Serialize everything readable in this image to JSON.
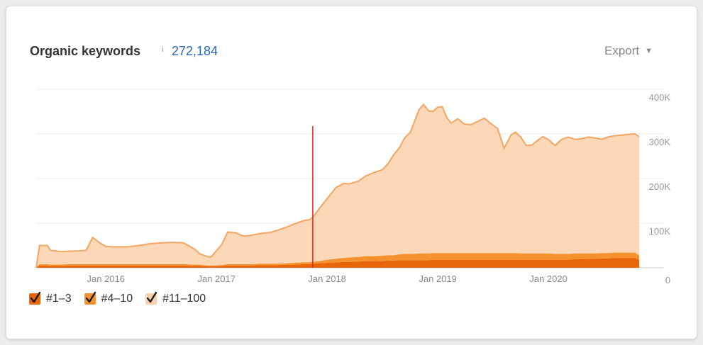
{
  "header": {
    "title": "Organic keywords",
    "info_glyph": "i",
    "total": "272,184",
    "export_label": "Export",
    "export_caret": "▼"
  },
  "colors": {
    "range_1_3": "#e8660a",
    "range_4_10": "#f6922e",
    "range_11_100": "#fbd1ad",
    "line_11_100": "#f5a562",
    "marker": "#e2231a",
    "total_text": "#2a6ab5"
  },
  "legend": [
    {
      "label": "#1–3",
      "color_key": "range_1_3",
      "checked": true
    },
    {
      "label": "#4–10",
      "color_key": "range_4_10",
      "checked": true
    },
    {
      "label": "#11–100",
      "color_key": "range_11_100",
      "checked": true
    }
  ],
  "chart_data": {
    "type": "area",
    "stacked": true,
    "x_unit": "year",
    "x_tick_labels": [
      "Jan 2016",
      "Jan 2017",
      "Jan 2018",
      "Jan 2019",
      "Jan 2020"
    ],
    "x_tick_values": [
      2016.0,
      2017.0,
      2018.0,
      2019.0,
      2020.0
    ],
    "xlim": [
      2015.37,
      2020.82
    ],
    "y_tick_labels": [
      "0",
      "100K",
      "200K",
      "300K",
      "400K"
    ],
    "y_tick_values": [
      0,
      100000,
      200000,
      300000,
      400000
    ],
    "ylim": [
      0,
      400000
    ],
    "grid": true,
    "legend_position": "bottom-left",
    "marker_line_x": 2017.87,
    "x": [
      2015.37,
      2015.4,
      2015.47,
      2015.5,
      2015.6,
      2015.65,
      2015.75,
      2015.82,
      2015.85,
      2015.88,
      2015.95,
      2016.0,
      2016.05,
      2016.1,
      2016.2,
      2016.3,
      2016.4,
      2016.5,
      2016.6,
      2016.7,
      2016.8,
      2016.85,
      2016.92,
      2016.95,
      2017.05,
      2017.1,
      2017.18,
      2017.22,
      2017.26,
      2017.32,
      2017.4,
      2017.48,
      2017.55,
      2017.62,
      2017.7,
      2017.78,
      2017.84,
      2017.87,
      2017.92,
      2018.0,
      2018.08,
      2018.15,
      2018.2,
      2018.28,
      2018.35,
      2018.42,
      2018.5,
      2018.55,
      2018.6,
      2018.65,
      2018.7,
      2018.75,
      2018.79,
      2018.83,
      2018.87,
      2018.92,
      2018.96,
      2019.0,
      2019.04,
      2019.08,
      2019.12,
      2019.18,
      2019.24,
      2019.3,
      2019.36,
      2019.42,
      2019.48,
      2019.54,
      2019.6,
      2019.66,
      2019.7,
      2019.75,
      2019.8,
      2019.85,
      2019.9,
      2019.95,
      2020.0,
      2020.06,
      2020.12,
      2020.18,
      2020.24,
      2020.3,
      2020.36,
      2020.42,
      2020.48,
      2020.54,
      2020.6,
      2020.66,
      2020.72,
      2020.78,
      2020.82
    ],
    "series": [
      {
        "name": "#1–3",
        "values": [
          0,
          5000,
          5000,
          4000,
          4000,
          5000,
          5000,
          5000,
          5000,
          5000,
          5000,
          5000,
          5000,
          5000,
          5000,
          5000,
          5000,
          5000,
          5000,
          5000,
          4000,
          4000,
          3000,
          3000,
          4000,
          5000,
          5000,
          5000,
          5000,
          5000,
          6000,
          6000,
          6000,
          7000,
          7000,
          8000,
          8000,
          9000,
          10000,
          11000,
          12000,
          13000,
          13000,
          14000,
          15000,
          15000,
          15000,
          16000,
          16000,
          17000,
          17000,
          17000,
          17000,
          17000,
          17000,
          17000,
          18000,
          18000,
          18000,
          18000,
          18000,
          18000,
          18000,
          18000,
          18000,
          18000,
          18000,
          18000,
          18000,
          18000,
          18000,
          18000,
          18000,
          18000,
          18000,
          18000,
          18000,
          18000,
          18000,
          18000,
          19000,
          19000,
          20000,
          20000,
          21000,
          21000,
          22000,
          22000,
          22000,
          22000,
          18000
        ]
      },
      {
        "name": "#4–10",
        "values": [
          0,
          3000,
          3000,
          3000,
          3000,
          3000,
          3000,
          3000,
          3000,
          3000,
          3000,
          3000,
          3000,
          3000,
          3000,
          3000,
          3000,
          3000,
          3000,
          3000,
          3000,
          3000,
          2000,
          2000,
          2000,
          3000,
          3000,
          3000,
          3000,
          3000,
          3000,
          3000,
          3000,
          3000,
          4000,
          4000,
          4000,
          4000,
          5000,
          7000,
          8000,
          9000,
          10000,
          10000,
          11000,
          11000,
          12000,
          12000,
          12000,
          13000,
          14000,
          14000,
          14000,
          15000,
          15000,
          15000,
          15000,
          15000,
          15000,
          15000,
          15000,
          15000,
          15000,
          15000,
          15000,
          15000,
          15000,
          15000,
          15000,
          15000,
          15000,
          14000,
          14000,
          14000,
          14000,
          14000,
          14000,
          13000,
          13000,
          13000,
          13000,
          13000,
          12000,
          12000,
          12000,
          12000,
          12000,
          12000,
          12000,
          12000,
          10000
        ]
      },
      {
        "name": "#11–100",
        "values": [
          0,
          42000,
          42000,
          32000,
          29000,
          29000,
          30000,
          31000,
          45000,
          60000,
          47000,
          40000,
          39000,
          39000,
          39000,
          42000,
          46000,
          48000,
          49000,
          48000,
          35000,
          24000,
          20000,
          19000,
          47000,
          72000,
          70000,
          65000,
          63000,
          65000,
          68000,
          70000,
          75000,
          80000,
          87000,
          93000,
          96000,
          100000,
          115000,
          137000,
          160000,
          167000,
          165000,
          170000,
          180000,
          187000,
          193000,
          205000,
          225000,
          238000,
          260000,
          272000,
          297000,
          322000,
          334000,
          319000,
          318000,
          327000,
          328000,
          304000,
          291000,
          301000,
          289000,
          288000,
          295000,
          302000,
          290000,
          279000,
          235000,
          264000,
          271000,
          261000,
          242000,
          243000,
          253000,
          262000,
          255000,
          243000,
          257000,
          262000,
          256000,
          257000,
          261000,
          259000,
          255000,
          260000,
          262000,
          263000,
          265000,
          266000,
          266000
        ]
      }
    ]
  }
}
